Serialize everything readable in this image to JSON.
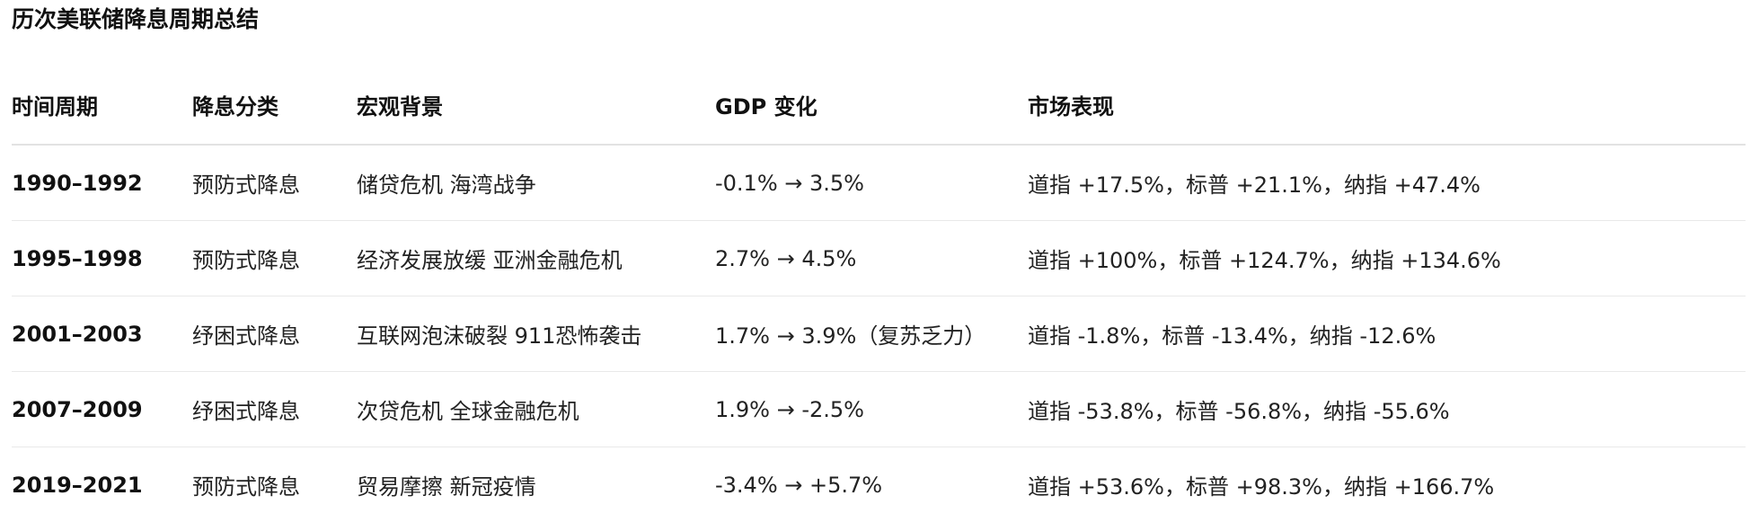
{
  "title": "历次美联储降息周期总结",
  "table": {
    "headers": [
      "时间周期",
      "降息分类",
      "宏观背景",
      "GDP 变化",
      "市场表现"
    ],
    "rows": [
      {
        "period": "1990–1992",
        "category": "预防式降息",
        "background": "储贷危机 海湾战争",
        "gdp": "-0.1% → 3.5%",
        "market": "道指 +17.5%，标普 +21.1%，纳指 +47.4%"
      },
      {
        "period": "1995–1998",
        "category": "预防式降息",
        "background": "经济发展放缓 亚洲金融危机",
        "gdp": "2.7% → 4.5%",
        "market": "道指 +100%，标普 +124.7%，纳指 +134.6%"
      },
      {
        "period": "2001–2003",
        "category": "纾困式降息",
        "background": "互联网泡沫破裂 911恐怖袭击",
        "gdp": "1.7% → 3.9%（复苏乏力）",
        "market": "道指 -1.8%，标普 -13.4%，纳指 -12.6%"
      },
      {
        "period": "2007–2009",
        "category": "纾困式降息",
        "background": "次贷危机 全球金融危机",
        "gdp": "1.9% → -2.5%",
        "market": "道指 -53.8%，标普 -56.8%，纳指 -55.6%"
      },
      {
        "period": "2019–2021",
        "category": "预防式降息",
        "background": "贸易摩擦 新冠疫情",
        "gdp": "-3.4% → +5.7%",
        "market": "道指 +53.6%，标普 +98.3%，纳指 +166.7%"
      }
    ]
  }
}
